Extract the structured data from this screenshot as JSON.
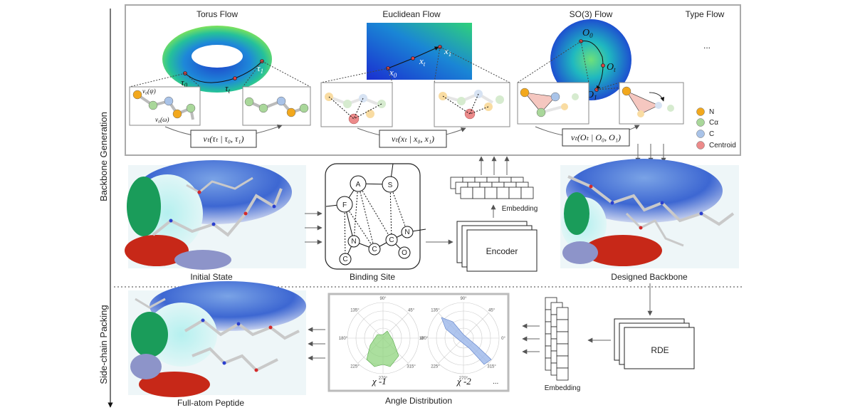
{
  "sections": {
    "top": "Backbone Generation",
    "bottom": "Side-chain Packing"
  },
  "flows": {
    "torus": "Torus Flow",
    "euclid": "Euclidean Flow",
    "so3": "SO(3) Flow",
    "type": "Type Flow",
    "ellipsis": "..."
  },
  "torus_math": {
    "tau0": "τ",
    "tau0_sub": "0",
    "taut": "τ",
    "taut_sub": "t",
    "tau1": "τ",
    "tau1_sub": "1",
    "v_psi": "v₀(ψ)",
    "v_omega": "v₀(ω)",
    "formula": "vₜ(τₜ | τ₀, τ₁)"
  },
  "euclid_math": {
    "x0": "x",
    "x0_sub": "0",
    "xt": "x",
    "xt_sub": "t",
    "x1": "x",
    "x1_sub": "1",
    "formula": "vₜ(xₜ | x₀, x₁)"
  },
  "so3_math": {
    "o0": "O",
    "o0_sub": "0",
    "ot": "O",
    "ot_sub": "t",
    "o1": "O",
    "o1_sub": "1",
    "formula": "vₜ(Oₜ | O₀, O₁)"
  },
  "legend": [
    {
      "label": "N",
      "color": "#f2a81d"
    },
    {
      "label": "Cα",
      "color": "#a9d79a"
    },
    {
      "label": "C",
      "color": "#a9c3e8"
    },
    {
      "label": "Centroid",
      "color": "#ec8a8a"
    }
  ],
  "binding_site": {
    "nodes": [
      "A",
      "S",
      "F",
      "N",
      "C",
      "C",
      "N",
      "C",
      "O"
    ],
    "label": "Binding Site"
  },
  "labels": {
    "initial_state": "Initial State",
    "designed_backbone": "Designed Backbone",
    "embedding_top": "Embedding",
    "encoder": "Encoder",
    "full_atom": "Full-atom Peptide",
    "angle_distribution": "Angle Distribution",
    "embedding_bottom": "Embedding",
    "rde": "RDE"
  },
  "polar": {
    "chi1": "χ -1",
    "chi2": "χ -2",
    "more": "...",
    "angles": [
      "90°",
      "45°",
      "0°",
      "315°",
      "270°",
      "225°",
      "180°",
      "135°"
    ]
  }
}
